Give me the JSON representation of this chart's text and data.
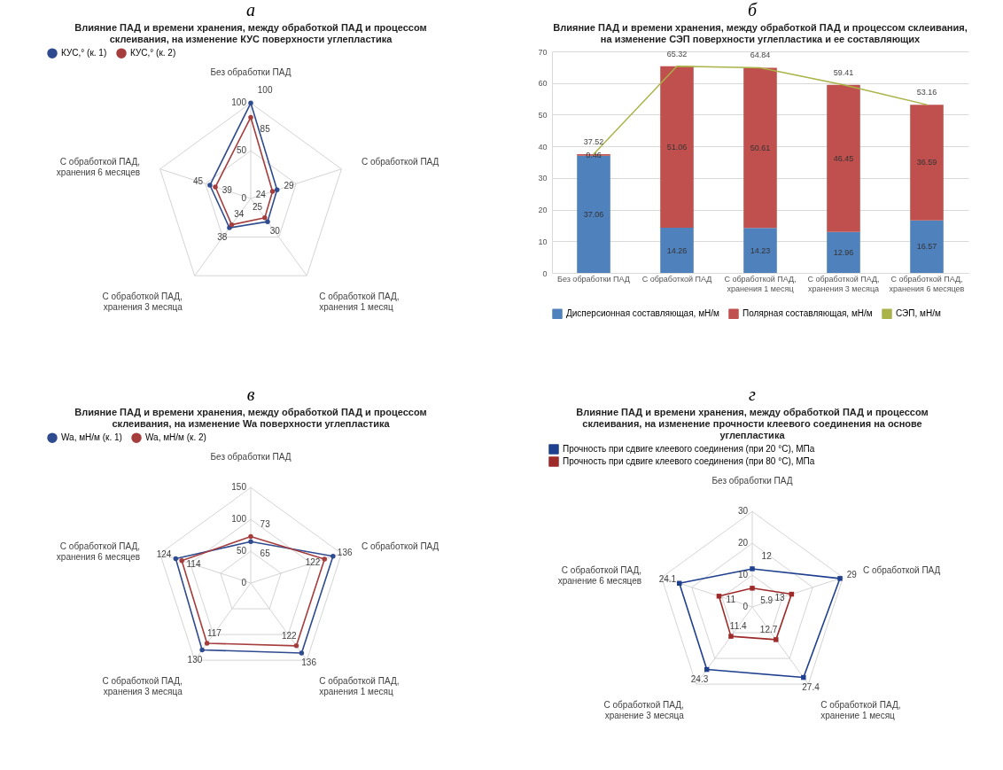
{
  "chart_data": [
    {
      "type": "radar",
      "annotations": [
        "а"
      ],
      "title": "Влияние ПАД и времени хранения, между обработкой ПАД и процессом склеивания, на изменение КУС поверхности углепластика",
      "categories": [
        "Без обработки ПАД",
        "С обработкой ПАД",
        "С обработкой ПАД, хранения 1 месяц",
        "С обработкой ПАД, хранения 3 месяца",
        "С обработкой ПАД, хранения 6 месяцев"
      ],
      "series": [
        {
          "name": "КУС,° (к. 1)",
          "color": "#2f4b8f",
          "values": [
            100,
            29,
            30,
            38,
            45
          ]
        },
        {
          "name": "КУС,° (к. 2)",
          "color": "#a63d3d",
          "values": [
            85,
            24,
            25,
            34,
            39
          ]
        }
      ],
      "ylim": [
        0,
        100
      ],
      "yticks": [
        0,
        50,
        100
      ],
      "grid": true,
      "legend": "top",
      "marker": "circle",
      "data_labels": true
    },
    {
      "type": "bar",
      "annotations": [
        "б"
      ],
      "title": "Влияние ПАД и времени хранения, между обработкой ПАД и процессом склеивания, на изменение СЭП поверхности углепластика и ее составляющих",
      "categories": [
        "Без обработки ПАД",
        "С обработкой ПАД",
        "С обработкой ПАД, хранения 1 месяц",
        "С обработкой ПАД, хранения 3 месяца",
        "С обработкой ПАД, хранения 6 месяцев"
      ],
      "stacked": true,
      "series": [
        {
          "name": "Дисперсионная составляющая, мН/м",
          "color": "#4f81bd",
          "values": [
            37.06,
            14.26,
            14.23,
            12.96,
            16.57
          ]
        },
        {
          "name": "Полярная составляющая, мН/м",
          "color": "#c0504d",
          "values": [
            0.46,
            51.06,
            50.61,
            46.45,
            36.59
          ]
        },
        {
          "name": "СЭП, мН/м",
          "color": "#a9b347",
          "type": "line",
          "values": [
            37.52,
            65.32,
            64.84,
            59.41,
            53.16
          ]
        }
      ],
      "ylim": [
        0,
        70
      ],
      "yticks": [
        0,
        10,
        20,
        30,
        40,
        50,
        60,
        70
      ],
      "grid": "y",
      "legend": "bottom",
      "data_labels": true
    },
    {
      "type": "radar",
      "annotations": [
        "в"
      ],
      "title": "Влияние ПАД и времени хранения, между обработкой ПАД и процессом склеивания, на изменение Wa поверхности углепластика",
      "categories": [
        "Без обработки ПАД",
        "С обработкой ПАД",
        "С обработкой ПАД, хранения 1 месяц",
        "С обработкой ПАД, хранения 3 месяца",
        "С обработкой ПАД, хранения 6 месяцев"
      ],
      "series": [
        {
          "name": "Wa, мН/м (к. 1)",
          "color": "#2f4b8f",
          "values": [
            65,
            136,
            136,
            130,
            124
          ]
        },
        {
          "name": "Wa, мН/м (к. 2)",
          "color": "#a63d3d",
          "values": [
            73,
            122,
            122,
            117,
            114
          ]
        }
      ],
      "ylim": [
        0,
        150
      ],
      "yticks": [
        0,
        50,
        100,
        150
      ],
      "grid": true,
      "legend": "top",
      "marker": "circle",
      "data_labels": true
    },
    {
      "type": "radar",
      "annotations": [
        "г"
      ],
      "title": "Влияние ПАД и времени хранения, между обработкой ПАД и процессом склеивания, на изменение прочности клеевого соединения на основе углепластика",
      "categories": [
        "Без обработки ПАД",
        "С обработкой ПАД",
        "С обработкой ПАД, хранение 1 месяц",
        "С обработкой ПАД, хранение 3 месяца",
        "С обработкой ПАД, хранение 6 месяцев"
      ],
      "series": [
        {
          "name": "Прочность при сдвиге клеевого соединения (при 20 °С), МПа",
          "color": "#1f3f8f",
          "values": [
            12,
            29,
            27.4,
            24.3,
            24.1
          ]
        },
        {
          "name": "Прочность при сдвиге клеевого соединения (при 80 °С), МПа",
          "color": "#9e2a2a",
          "values": [
            5.9,
            13,
            12.7,
            11.4,
            11
          ]
        }
      ],
      "ylim": [
        0,
        30
      ],
      "yticks": [
        0,
        10,
        20,
        30
      ],
      "grid": true,
      "legend": "top",
      "marker": "square",
      "data_labels": true
    }
  ]
}
